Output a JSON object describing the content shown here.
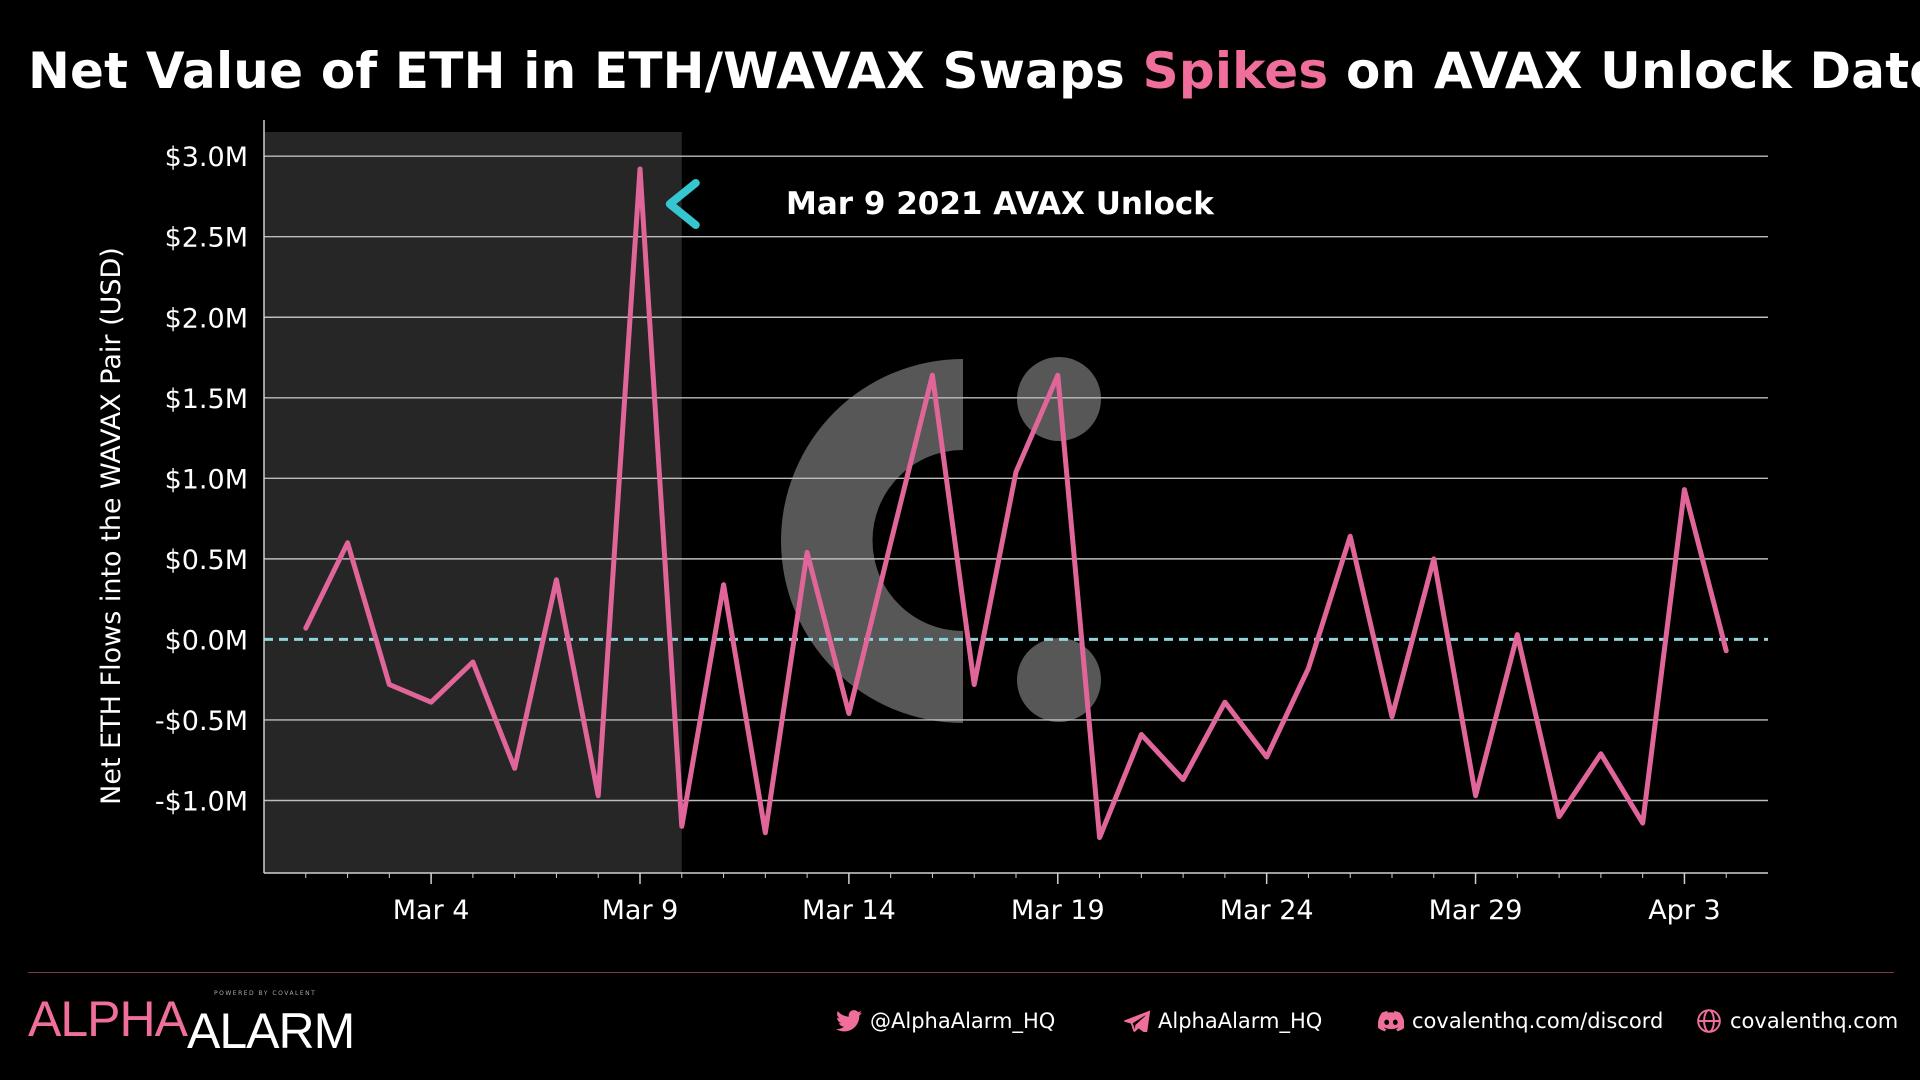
{
  "title": {
    "before": "Net Value of ETH in ETH/WAVAX Swaps ",
    "highlight": "Spikes",
    "after": " on AVAX Unlock Date."
  },
  "colors": {
    "line": "#e0669a",
    "accent": "#f06e9b",
    "zero_line": "#8fd3dc",
    "shaded": "#262626",
    "grid": "#bdbdbd",
    "arrow_head": "#35c6cf"
  },
  "chart_data": {
    "type": "line",
    "ylabel": "Net ETH Flows into the WAVAX Pair (USD)",
    "xlabel": "",
    "ylim": [
      -1.45,
      3.15
    ],
    "y_unit": "USD millions",
    "y_ticks": [
      -1.0,
      -0.5,
      0.0,
      0.5,
      1.0,
      1.5,
      2.0,
      2.5,
      3.0
    ],
    "y_tick_labels": [
      "-$1.0M",
      "-$0.5M",
      "$0.0M",
      "$0.5M",
      "$1.0M",
      "$1.5M",
      "$2.0M",
      "$2.5M",
      "$3.0M"
    ],
    "x_ticks": [
      "2021-03-04",
      "2021-03-09",
      "2021-03-14",
      "2021-03-19",
      "2021-03-24",
      "2021-03-29",
      "2021-04-03"
    ],
    "x_tick_labels": [
      "Mar 4",
      "Mar 9",
      "Mar 14",
      "Mar 19",
      "Mar 24",
      "Mar 29",
      "Apr 3"
    ],
    "xlim": [
      "2021-02-28",
      "2021-04-05"
    ],
    "grid": "horizontal",
    "zero_line": "dashed",
    "shaded_region": [
      "2021-02-28",
      "2021-03-10"
    ],
    "annotation": {
      "text": "Mar 9 2021 AVAX Unlock",
      "points_to": "2021-03-10"
    },
    "series": [
      {
        "x": [
          "2021-03-01",
          "2021-03-02",
          "2021-03-03",
          "2021-03-04",
          "2021-03-05",
          "2021-03-06",
          "2021-03-07",
          "2021-03-08",
          "2021-03-09",
          "2021-03-10",
          "2021-03-11",
          "2021-03-12",
          "2021-03-13",
          "2021-03-14",
          "2021-03-15",
          "2021-03-16",
          "2021-03-17",
          "2021-03-18",
          "2021-03-19",
          "2021-03-20",
          "2021-03-21",
          "2021-03-22",
          "2021-03-23",
          "2021-03-24",
          "2021-03-25",
          "2021-03-26",
          "2021-03-27",
          "2021-03-28",
          "2021-03-29",
          "2021-03-30",
          "2021-03-31",
          "2021-04-01",
          "2021-04-02",
          "2021-04-03",
          "2021-04-04"
        ],
        "values": [
          0.07,
          0.6,
          -0.28,
          -0.39,
          -0.14,
          -0.8,
          0.37,
          -0.97,
          2.92,
          -1.16,
          0.34,
          -1.2,
          0.54,
          -0.46,
          0.6,
          1.64,
          -0.28,
          1.04,
          1.64,
          -1.23,
          -0.59,
          -0.87,
          -0.39,
          -0.73,
          -0.18,
          0.64,
          -0.48,
          0.5,
          -0.97,
          0.03,
          -1.1,
          -0.71,
          -1.14,
          0.93,
          -0.07
        ]
      }
    ]
  },
  "footer": {
    "brand_alpha": "ALPHA",
    "brand_alarm": "ALARM",
    "brand_powered": "POWERED BY COVALENT",
    "twitter": "@AlphaAlarm_HQ",
    "telegram": "AlphaAlarm_HQ",
    "discord": "covalenthq.com/discord",
    "website": "covalenthq.com",
    "icons": [
      "twitter-icon",
      "telegram-icon",
      "discord-icon",
      "globe-icon"
    ]
  }
}
